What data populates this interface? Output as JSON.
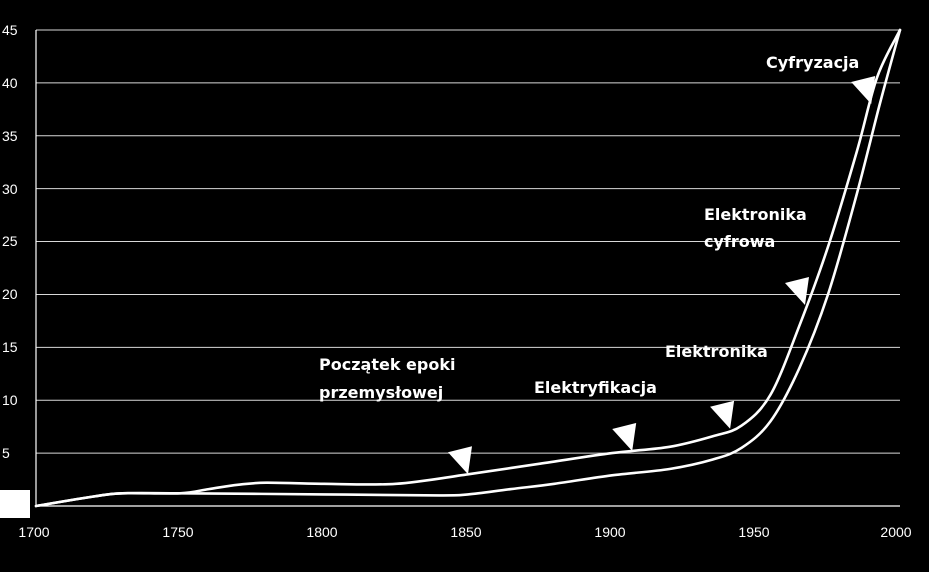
{
  "chart_data": {
    "type": "line",
    "title": "",
    "xlabel": "",
    "ylabel": "",
    "xlim": [
      1700,
      2000
    ],
    "ylim": [
      0,
      45
    ],
    "x_ticks": [
      "1700",
      "1750",
      "1800",
      "1850",
      "1900",
      "1950",
      "2000"
    ],
    "y_ticks": [
      "5",
      "10",
      "15",
      "20",
      "25",
      "30",
      "35",
      "40",
      "45"
    ],
    "grid": true,
    "series": [
      {
        "points": [
          [
            1700,
            0
          ],
          [
            1720,
            0.9
          ],
          [
            1730,
            1.2
          ],
          [
            1750,
            1.2
          ],
          [
            1760,
            1.6
          ],
          [
            1770,
            2.0
          ],
          [
            1780,
            2.2
          ],
          [
            1800,
            2.1
          ],
          [
            1825,
            2.1
          ],
          [
            1850,
            3.0
          ],
          [
            1875,
            4.0
          ],
          [
            1900,
            5.0
          ],
          [
            1920,
            5.6
          ],
          [
            1935,
            6.6
          ],
          [
            1945,
            7.6
          ],
          [
            1955,
            10.5
          ],
          [
            1965,
            17.0
          ],
          [
            1975,
            24.5
          ],
          [
            1985,
            33.5
          ],
          [
            1992,
            40.5
          ],
          [
            2000,
            45.0
          ]
        ]
      },
      {
        "points": [
          [
            1700,
            0
          ],
          [
            1720,
            0.9
          ],
          [
            1730,
            1.2
          ],
          [
            1750,
            1.2
          ],
          [
            1800,
            1.1
          ],
          [
            1840,
            1.0
          ],
          [
            1850,
            1.1
          ],
          [
            1865,
            1.6
          ],
          [
            1880,
            2.1
          ],
          [
            1900,
            2.9
          ],
          [
            1920,
            3.5
          ],
          [
            1935,
            4.4
          ],
          [
            1945,
            5.5
          ],
          [
            1955,
            8.0
          ],
          [
            1965,
            13.0
          ],
          [
            1975,
            20.0
          ],
          [
            1985,
            29.5
          ],
          [
            1993,
            38.0
          ],
          [
            2000,
            45.0
          ]
        ]
      }
    ],
    "annotations": [
      {
        "lines": [
          "Początek epoki",
          "przemysłowej"
        ],
        "marker_x": 1850,
        "marker_y": 3.0
      },
      {
        "lines": [
          "Elektryfikacja"
        ],
        "marker_x": 1907,
        "marker_y": 5.2
      },
      {
        "lines": [
          "Elektronika"
        ],
        "marker_x": 1941,
        "marker_y": 7.3
      },
      {
        "lines": [
          "Elektronika",
          "cyfrowa"
        ],
        "marker_x": 1967,
        "marker_y": 19.0
      },
      {
        "lines": [
          "Cyfryzacja"
        ],
        "marker_x": 1990,
        "marker_y": 38.0
      }
    ]
  }
}
